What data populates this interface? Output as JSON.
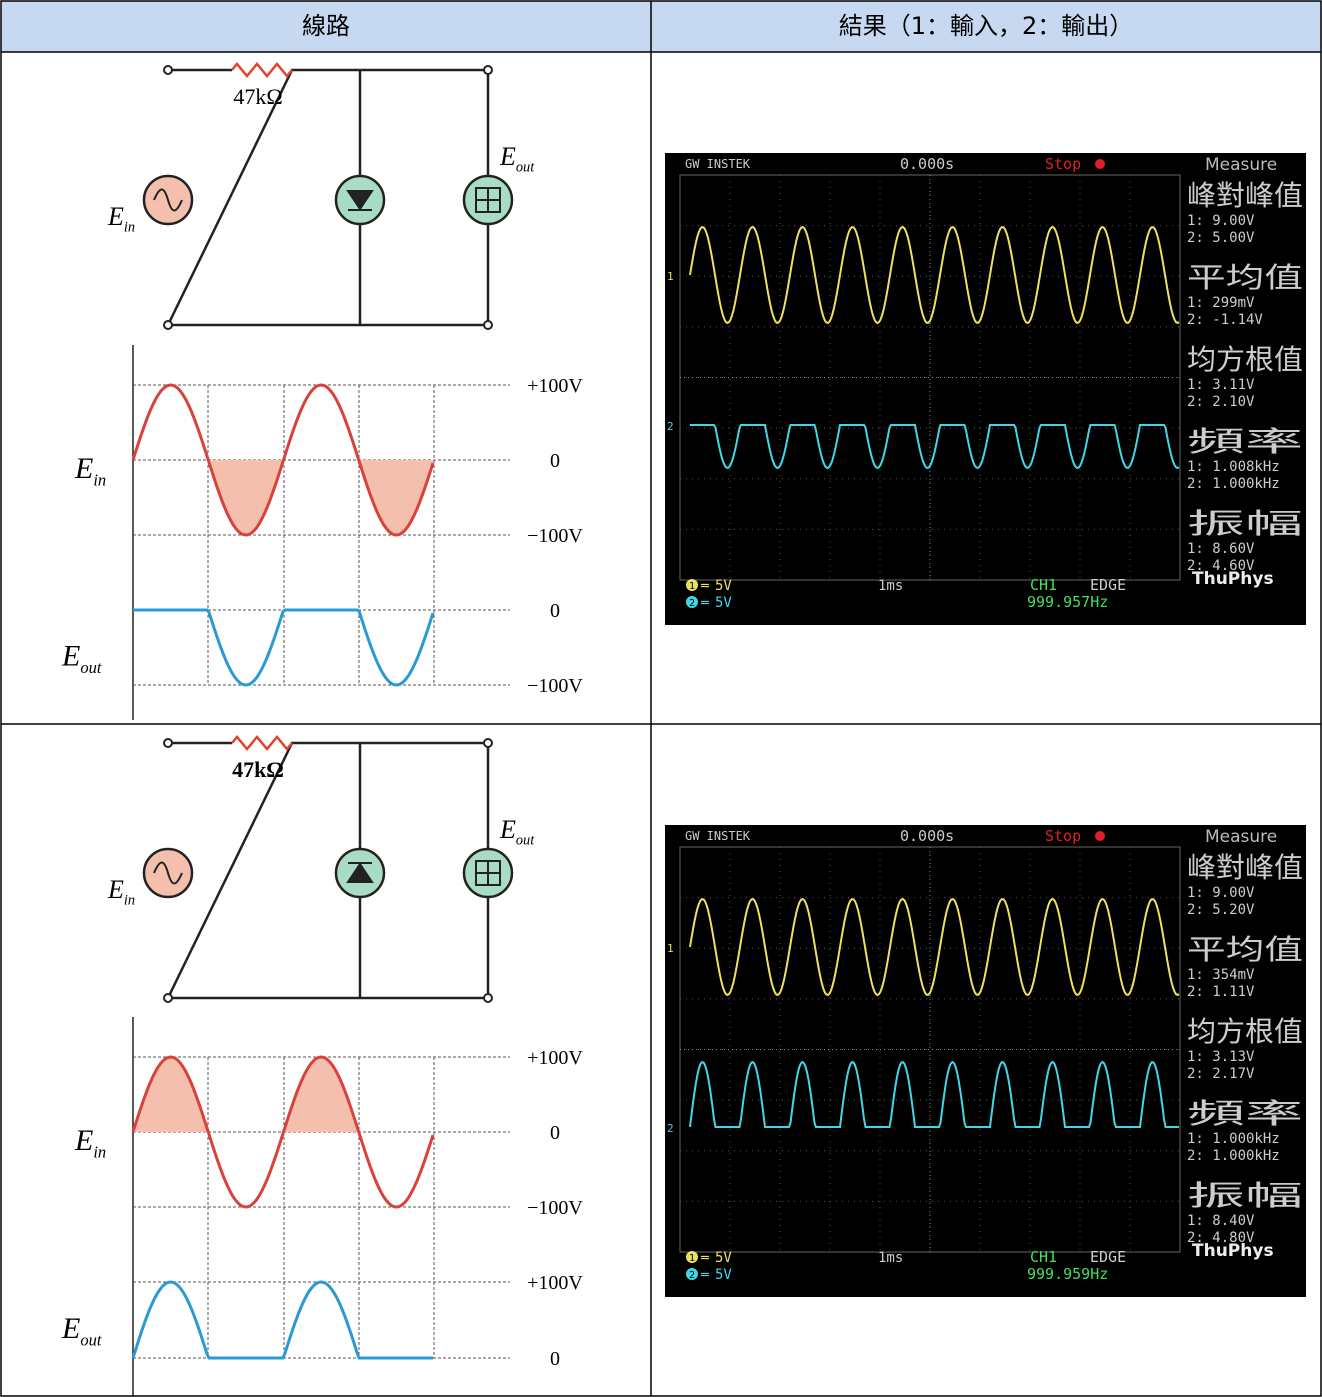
{
  "table": {
    "headers": [
      "線路",
      "結果（1：輸入，2：輸出）"
    ],
    "rows": [
      {
        "circuit": {
          "resistor": "47kΩ",
          "source": {
            "main": "E",
            "sub": "in"
          },
          "output": {
            "main": "E",
            "sub": "out"
          }
        },
        "waveform": {
          "input": {
            "main": "E",
            "sub": "in"
          },
          "output": {
            "main": "E",
            "sub": "out"
          },
          "input_labels": [
            "+100V",
            "0",
            "−100V"
          ],
          "output_labels": [
            "0",
            "−100V"
          ]
        },
        "scope": {
          "brand": "GW INSTEK",
          "time": "0.000s",
          "status": "Stop",
          "panel": "Measure",
          "ch_markers": [
            "1",
            "2"
          ],
          "measures": [
            {
              "title": "峰對峰值",
              "ch1": "1: 9.00V",
              "ch2": "2: 5.00V"
            },
            {
              "title": "平均值",
              "ch1": "1: 299mV",
              "ch2": "2: -1.14V"
            },
            {
              "title": "均方根值",
              "ch1": "1: 3.11V",
              "ch2": "2: 2.10V"
            },
            {
              "title": "頻率",
              "ch1": "1: 1.008kHz",
              "ch2": "2: 1.000kHz"
            },
            {
              "title": "振幅",
              "ch1": "1: 8.60V",
              "ch2": "2: 4.60V"
            }
          ],
          "ch1_scale": "5V",
          "ch2_scale": "5V",
          "timebase": "1ms",
          "trigger_source": "CH1",
          "trigger_type": "EDGE",
          "frequency": "999.957Hz",
          "watermark": "ThuPhys"
        }
      },
      {
        "circuit": {
          "resistor": "47kΩ",
          "source": {
            "main": "E",
            "sub": "in"
          },
          "output": {
            "main": "E",
            "sub": "out"
          }
        },
        "waveform": {
          "input": {
            "main": "E",
            "sub": "in"
          },
          "output": {
            "main": "E",
            "sub": "out"
          },
          "input_labels": [
            "+100V",
            "0",
            "−100V"
          ],
          "output_labels": [
            "+100V",
            "0"
          ]
        },
        "scope": {
          "brand": "GW INSTEK",
          "time": "0.000s",
          "status": "Stop",
          "panel": "Measure",
          "ch_markers": [
            "1",
            "2"
          ],
          "measures": [
            {
              "title": "峰對峰值",
              "ch1": "1: 9.00V",
              "ch2": "2: 5.20V"
            },
            {
              "title": "平均值",
              "ch1": "1: 354mV",
              "ch2": "2: 1.11V"
            },
            {
              "title": "均方根值",
              "ch1": "1: 3.13V",
              "ch2": "2: 2.17V"
            },
            {
              "title": "頻率",
              "ch1": "1: 1.000kHz",
              "ch2": "2: 1.000kHz"
            },
            {
              "title": "振幅",
              "ch1": "1: 8.40V",
              "ch2": "2: 4.80V"
            }
          ],
          "ch1_scale": "5V",
          "ch2_scale": "5V",
          "timebase": "1ms",
          "trigger_source": "CH1",
          "trigger_type": "EDGE",
          "frequency": "999.959Hz",
          "watermark": "ThuPhys"
        }
      }
    ]
  }
}
